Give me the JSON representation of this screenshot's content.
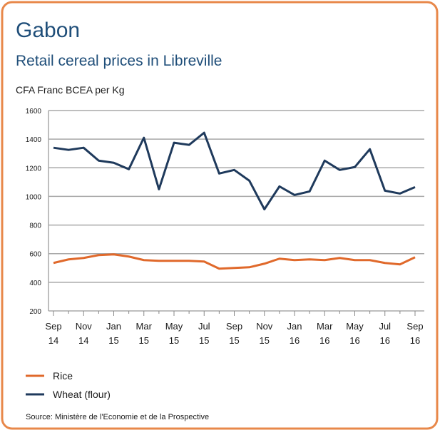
{
  "chart_data": {
    "type": "line",
    "title": "Gabon",
    "subtitle": "Retail cereal prices in Libreville",
    "y_label": "CFA Franc BCEA per Kg",
    "source": "Source: Ministère de l'Economie et de la Prospective",
    "categories": [
      [
        "Sep",
        "14"
      ],
      null,
      [
        "Nov",
        "14"
      ],
      null,
      [
        "Jan",
        "15"
      ],
      null,
      [
        "Mar",
        "15"
      ],
      null,
      [
        "May",
        "15"
      ],
      null,
      [
        "Jul",
        "15"
      ],
      null,
      [
        "Sep",
        "15"
      ],
      null,
      [
        "Nov",
        "15"
      ],
      null,
      [
        "Jan",
        "16"
      ],
      null,
      [
        "Mar",
        "16"
      ],
      null,
      [
        "May",
        "16"
      ],
      null,
      [
        "Jul",
        "16"
      ],
      null,
      [
        "Sep",
        "16"
      ]
    ],
    "series": [
      {
        "name": "Rice",
        "color": "#e0692b",
        "values": [
          535,
          560,
          570,
          590,
          595,
          580,
          555,
          550,
          550,
          550,
          545,
          495,
          500,
          505,
          530,
          565,
          555,
          560,
          555,
          570,
          555,
          555,
          535,
          525,
          575
        ]
      },
      {
        "name": "Wheat (flour)",
        "color": "#1f3a5c",
        "values": [
          1340,
          1325,
          1340,
          1250,
          1235,
          1190,
          1410,
          1050,
          1375,
          1360,
          1445,
          1160,
          1185,
          1110,
          910,
          1070,
          1010,
          1035,
          1250,
          1185,
          1205,
          1330,
          1040,
          1020,
          1065
        ]
      }
    ],
    "ylim": [
      200,
      1600
    ],
    "yticks": [
      200,
      400,
      600,
      800,
      1000,
      1200,
      1400,
      1600
    ],
    "grid": true
  }
}
